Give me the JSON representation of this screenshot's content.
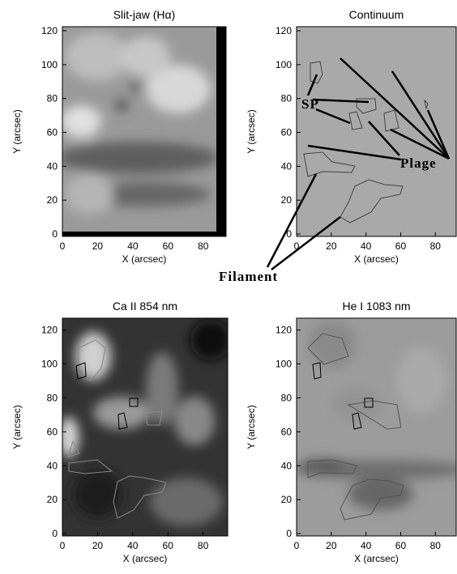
{
  "chart_data": [
    {
      "type": "image",
      "title": "Slit-jaw (Hα)",
      "xlabel": "X (arcsec)",
      "ylabel": "Y (arcsec)",
      "xlim": [
        0,
        93
      ],
      "ylim": [
        -1.4,
        122.4
      ],
      "xticks": [
        0,
        20,
        40,
        60,
        80
      ],
      "yticks": [
        0,
        20,
        40,
        60,
        80,
        100,
        120
      ]
    },
    {
      "type": "image",
      "title": "Continuum",
      "xlabel": "X (arcsec)",
      "ylabel": "Y (arcsec)",
      "xlim": [
        0,
        92
      ],
      "ylim": [
        -1.4,
        122.4
      ],
      "xticks": [
        0,
        20,
        40,
        60,
        80
      ],
      "yticks": [
        0,
        20,
        40,
        60,
        80,
        100,
        120
      ]
    },
    {
      "type": "image",
      "title": "Ca II 854 nm",
      "xlabel": "X (arcsec)",
      "ylabel": "Y (arcsec)",
      "xlim": [
        0,
        94
      ],
      "ylim": [
        -1.4,
        127
      ],
      "xticks": [
        0,
        20,
        40,
        60,
        80
      ],
      "yticks": [
        0,
        20,
        40,
        60,
        80,
        100,
        120
      ]
    },
    {
      "type": "image",
      "title": "He I 1083 nm",
      "xlabel": "X (arcsec)",
      "ylabel": "Y (arcsec)",
      "xlim": [
        0,
        92
      ],
      "ylim": [
        -1.4,
        127
      ],
      "xticks": [
        0,
        20,
        40,
        60,
        80
      ],
      "yticks": [
        0,
        20,
        40,
        60,
        80,
        100,
        120
      ]
    }
  ],
  "annotations": [
    "SP",
    "Plage",
    "Filament"
  ]
}
